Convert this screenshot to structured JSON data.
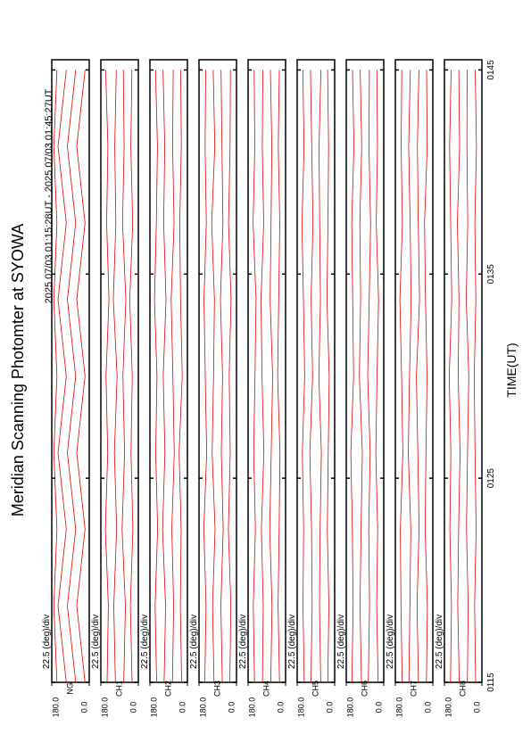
{
  "chart_data": {
    "type": "line",
    "title": "Meridian Scanning Photomter at SYOWA",
    "subtitle": "2025 07/03 01:15:28UT - 2025 07/03 01:45:27UT",
    "x_label": "TIME(UT)",
    "xlim": [
      75,
      105.5
    ],
    "xticks": [
      {
        "value": 75,
        "label": "0115"
      },
      {
        "value": 85,
        "label": "0125"
      },
      {
        "value": 95,
        "label": "0135"
      },
      {
        "value": 105,
        "label": "0145"
      }
    ],
    "x": [
      75,
      78.75,
      82.5,
      86.25,
      90,
      93.75,
      97.5,
      101.25,
      105
    ],
    "color": "#e00000",
    "panels": [
      {
        "label": "NG",
        "scale_label": "22.5 (deg)/div",
        "ylim": [
          0,
          180
        ],
        "yticks": [
          {
            "value": 180,
            "label": "180.0"
          },
          {
            "value": 0,
            "label": "0.0"
          }
        ],
        "series": [
          {
            "values": [
              20,
              60,
              20,
              60,
              20,
              60,
              20,
              60,
              20
            ]
          },
          {
            "values": [
              65,
              105,
              65,
              105,
              65,
              105,
              65,
              105,
              65
            ]
          },
          {
            "values": [
              110,
              150,
              110,
              150,
              110,
              150,
              110,
              150,
              110
            ]
          },
          {
            "values": [
              155,
              170,
              155,
              170,
              155,
              170,
              155,
              170,
              155
            ]
          }
        ]
      },
      {
        "label": "CH1",
        "scale_label": "22.5 (deg)/div",
        "ylim": [
          0,
          180
        ],
        "yticks": [
          {
            "value": 180,
            "label": "180.0"
          },
          {
            "value": 0,
            "label": "0.0"
          }
        ],
        "series": [
          {
            "values": [
              30,
              38,
              26,
              35,
              29,
              41,
              27,
              36,
              31
            ]
          },
          {
            "values": [
              70,
              62,
              78,
              66,
              74,
              60,
              76,
              68,
              72
            ]
          },
          {
            "values": [
              110,
              118,
              104,
              115,
              102,
              120,
              108,
              113,
              106
            ]
          },
          {
            "values": [
              150,
              144,
              158,
              147,
              155,
              141,
              152,
              146,
              157
            ]
          }
        ]
      },
      {
        "label": "CH2",
        "scale_label": "22.5 (deg)/div",
        "ylim": [
          0,
          180
        ],
        "yticks": [
          {
            "value": 180,
            "label": "180.0"
          },
          {
            "value": 0,
            "label": "0.0"
          }
        ],
        "series": [
          {
            "values": [
              28,
              34,
              30,
              40,
              25,
              33,
              37,
              29,
              32
            ]
          },
          {
            "values": [
              72,
              66,
              75,
              63,
              70,
              78,
              64,
              71,
              68
            ]
          },
          {
            "values": [
              112,
              105,
              119,
              108,
              116,
              103,
              114,
              109,
              117
            ]
          },
          {
            "values": [
              148,
              155,
              143,
              152,
              146,
              158,
              149,
              144,
              153
            ]
          }
        ]
      },
      {
        "label": "CH3",
        "scale_label": "22.5 (deg)/div",
        "ylim": [
          0,
          180
        ],
        "yticks": [
          {
            "value": 180,
            "label": "180.0"
          },
          {
            "value": 0,
            "label": "0.0"
          }
        ],
        "series": [
          {
            "values": [
              32,
              27,
              39,
              30,
              35,
              26,
              38,
              31,
              29
            ]
          },
          {
            "values": [
              68,
              75,
              64,
              73,
              67,
              77,
              65,
              70,
              74
            ]
          },
          {
            "values": [
              108,
              115,
              103,
              117,
              110,
              106,
              119,
              104,
              112
            ]
          },
          {
            "values": [
              152,
              146,
              157,
              143,
              150,
              156,
              145,
              151,
              148
            ]
          }
        ]
      },
      {
        "label": "CH4",
        "scale_label": "22.5 (deg)/div",
        "ylim": [
          0,
          180
        ],
        "yticks": [
          {
            "value": 180,
            "label": "180.0"
          },
          {
            "value": 0,
            "label": "0.0"
          }
        ],
        "series": [
          {
            "values": [
              29,
              36,
              31,
              27,
              38,
              33,
              28,
              35,
              30
            ]
          },
          {
            "values": [
              71,
              65,
              76,
              69,
              62,
              74,
              70,
              66,
              73
            ]
          },
          {
            "values": [
              111,
              107,
              116,
              104,
              113,
              118,
              105,
              112,
              109
            ]
          },
          {
            "values": [
              149,
              155,
              145,
              153,
              147,
              142,
              156,
              148,
              151
            ]
          }
        ]
      },
      {
        "label": "CH5",
        "scale_label": "22.5 (deg)/div",
        "ylim": [
          0,
          180
        ],
        "yticks": [
          {
            "value": 180,
            "label": "180.0"
          },
          {
            "value": 0,
            "label": "0.0"
          }
        ],
        "series": [
          {
            "values": [
              33,
              28,
              35,
              31,
              26,
              37,
              32,
              29,
              34
            ]
          },
          {
            "values": [
              67,
              73,
              70,
              64,
              76,
              68,
              72,
              75,
              66
            ]
          },
          {
            "values": [
              114,
              108,
              111,
              119,
              106,
              113,
              104,
              110,
              116
            ]
          },
          {
            "values": [
              146,
              152,
              149,
              155,
              144,
              150,
              157,
              147,
              153
            ]
          }
        ]
      },
      {
        "label": "CH6",
        "scale_label": "22.5 (deg)/div",
        "ylim": [
          0,
          180
        ],
        "yticks": [
          {
            "value": 180,
            "label": "180.0"
          },
          {
            "value": 0,
            "label": "0.0"
          }
        ],
        "series": [
          {
            "values": [
              27,
              34,
              29,
              38,
              32,
              25,
              36,
              30,
              33
            ]
          },
          {
            "values": [
              74,
              68,
              72,
              65,
              77,
              70,
              63,
              71,
              69
            ]
          },
          {
            "values": [
              107,
              114,
              109,
              103,
              117,
              111,
              115,
              106,
              113
            ]
          },
          {
            "values": [
              153,
              147,
              151,
              158,
              145,
              149,
              154,
              143,
              150
            ]
          }
        ]
      },
      {
        "label": "CH7",
        "scale_label": "22.5 (deg)/div",
        "ylim": [
          0,
          180
        ],
        "yticks": [
          {
            "value": 180,
            "label": "180.0"
          },
          {
            "value": 0,
            "label": "0.0"
          }
        ],
        "series": [
          {
            "values": [
              31,
              26,
              37,
              33,
              28,
              35,
              40,
              27,
              30
            ]
          },
          {
            "values": [
              69,
              76,
              66,
              72,
              79,
              64,
              70,
              74,
              67
            ]
          },
          {
            "values": [
              115,
              110,
              106,
              118,
              112,
              104,
              109,
              116,
              108
            ]
          },
          {
            "values": [
              147,
              153,
              156,
              144,
              150,
              158,
              146,
              152,
              149
            ]
          }
        ]
      },
      {
        "label": "CH8",
        "scale_label": "22.5 (deg)/div",
        "ylim": [
          0,
          180
        ],
        "yticks": [
          {
            "value": 180,
            "label": "180.0"
          },
          {
            "value": 0,
            "label": "0.0"
          }
        ],
        "series": [
          {
            "values": [
              30,
              35,
              28,
              33,
              37,
              29,
              34,
              26,
              32
            ]
          },
          {
            "values": [
              70,
              66,
              74,
              69,
              63,
              75,
              68,
              72,
              71
            ]
          },
          {
            "values": [
              109,
              116,
              112,
              105,
              114,
              110,
              118,
              107,
              111
            ]
          },
          {
            "values": [
              151,
              146,
              154,
              149,
              157,
              145,
              150,
              155,
              148
            ]
          }
        ]
      }
    ]
  }
}
